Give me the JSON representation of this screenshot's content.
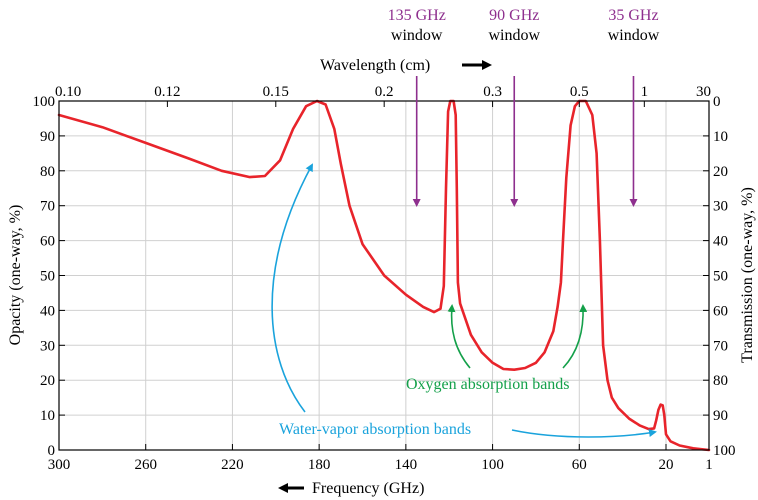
{
  "chart_data": {
    "type": "line",
    "title": "",
    "xlabel": "Frequency (GHz)",
    "x2label": "Wavelength (cm)",
    "ylabel": "Opacity (one-way, %)",
    "y2label": "Transmission (one-way, %)",
    "xlim": [
      300,
      1
    ],
    "ylim": [
      0,
      100
    ],
    "grid": true,
    "line_color": "#e8242b",
    "x_ticks": [
      300,
      260,
      220,
      180,
      140,
      100,
      60,
      20,
      1
    ],
    "x_tick_labels": [
      "300",
      "260",
      "220",
      "180",
      "140",
      "100",
      "60",
      "20",
      "1"
    ],
    "y_ticks": [
      0,
      10,
      20,
      30,
      40,
      50,
      60,
      70,
      80,
      90,
      100
    ],
    "y_tick_labels": [
      "0",
      "10",
      "20",
      "30",
      "40",
      "50",
      "60",
      "70",
      "80",
      "90",
      "100"
    ],
    "y2_tick_labels": [
      "100",
      "90",
      "80",
      "70",
      "60",
      "50",
      "40",
      "30",
      "20",
      "10",
      "0"
    ],
    "wavelength_ticks": [
      {
        "label": "0.10",
        "freq": 300
      },
      {
        "label": "0.12",
        "freq": 250
      },
      {
        "label": "0.15",
        "freq": 200
      },
      {
        "label": "0.2",
        "freq": 150
      },
      {
        "label": "0.3",
        "freq": 100
      },
      {
        "label": "0.5",
        "freq": 60
      },
      {
        "label": "1",
        "freq": 30
      },
      {
        "label": "30",
        "freq": 1
      }
    ],
    "series": [
      {
        "values": [
          [
            300,
            96
          ],
          [
            280,
            92.5
          ],
          [
            260,
            88
          ],
          [
            240,
            83.5
          ],
          [
            225,
            80
          ],
          [
            212,
            78.2
          ],
          [
            205,
            78.5
          ],
          [
            198,
            83
          ],
          [
            192,
            92
          ],
          [
            186,
            98.5
          ],
          [
            181,
            100
          ],
          [
            177,
            99
          ],
          [
            173,
            92
          ],
          [
            170,
            82
          ],
          [
            166,
            70
          ],
          [
            160,
            59
          ],
          [
            150,
            50
          ],
          [
            140,
            44.5
          ],
          [
            132,
            41
          ],
          [
            127,
            39.5
          ],
          [
            124,
            40.5
          ],
          [
            122.5,
            47
          ],
          [
            121.5,
            75
          ],
          [
            120.5,
            97
          ],
          [
            119.5,
            100
          ],
          [
            118,
            100
          ],
          [
            117,
            96
          ],
          [
            116.5,
            75
          ],
          [
            116,
            48
          ],
          [
            115,
            42
          ],
          [
            110,
            33
          ],
          [
            105,
            28
          ],
          [
            100,
            25
          ],
          [
            95,
            23.2
          ],
          [
            90,
            23
          ],
          [
            85,
            23.5
          ],
          [
            80,
            25
          ],
          [
            76,
            28
          ],
          [
            72,
            34
          ],
          [
            70,
            41
          ],
          [
            68.5,
            48
          ],
          [
            67.5,
            60
          ],
          [
            66,
            78
          ],
          [
            64,
            93
          ],
          [
            62,
            98.5
          ],
          [
            60,
            100
          ],
          [
            57,
            100
          ],
          [
            54,
            96
          ],
          [
            52,
            85
          ],
          [
            50.5,
            60
          ],
          [
            49,
            30
          ],
          [
            47,
            20
          ],
          [
            45,
            15
          ],
          [
            42,
            12
          ],
          [
            37,
            9
          ],
          [
            32,
            7
          ],
          [
            28,
            6
          ],
          [
            25.5,
            6.2
          ],
          [
            24.5,
            8.5
          ],
          [
            23.5,
            11.5
          ],
          [
            22.5,
            13
          ],
          [
            21.5,
            12.8
          ],
          [
            20.8,
            10
          ],
          [
            20,
            4.5
          ],
          [
            18,
            2.5
          ],
          [
            14,
            1.3
          ],
          [
            8,
            0.5
          ],
          [
            1,
            0
          ]
        ]
      }
    ],
    "windows": [
      {
        "freq_label": "135 GHz",
        "word": "window",
        "freq": 135
      },
      {
        "freq_label": "90 GHz",
        "word": "window",
        "freq": 90
      },
      {
        "freq_label": "35 GHz",
        "word": "window",
        "freq": 35
      }
    ],
    "annotations": {
      "water_vapor": "Water-vapor absorption bands",
      "oxygen": "Oxygen absorption bands"
    },
    "colors": {
      "window": "#8e2f8e",
      "water_vapor": "#1aa3dc",
      "oxygen": "#14a04a"
    }
  }
}
